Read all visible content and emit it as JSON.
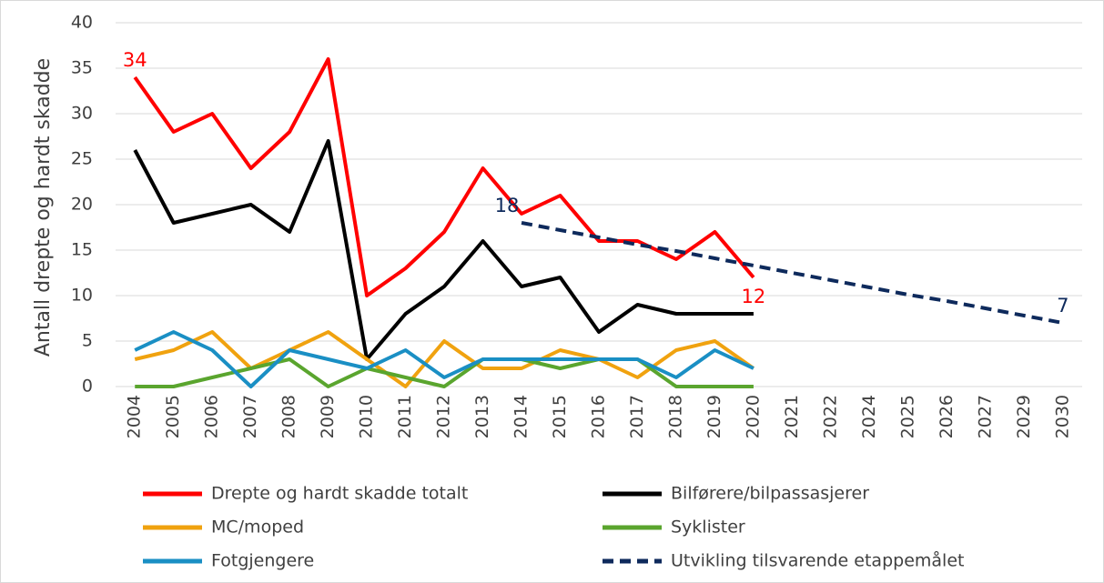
{
  "chart_data": {
    "type": "line",
    "y_label": "Antall drepte og hardt skadde",
    "categories": [
      "2004",
      "2005",
      "2006",
      "2007",
      "2008",
      "2009",
      "2010",
      "2011",
      "2012",
      "2013",
      "2014",
      "2015",
      "2016",
      "2017",
      "2018",
      "2019",
      "2020",
      "2021",
      "2022",
      "2024",
      "2025",
      "2026",
      "2027",
      "2029",
      "2030"
    ],
    "series": [
      {
        "name": "Drepte og hardt skadde totalt",
        "color": "#ff0000",
        "values": [
          34,
          28,
          30,
          24,
          28,
          36,
          10,
          13,
          17,
          24,
          19,
          21,
          16,
          16,
          14,
          17,
          12,
          null,
          null,
          null,
          null,
          null,
          null,
          null,
          null
        ]
      },
      {
        "name": "Bilførere/bilpassasjerer",
        "color": "#000000",
        "values": [
          26,
          18,
          19,
          20,
          17,
          27,
          3,
          8,
          11,
          16,
          11,
          12,
          6,
          9,
          8,
          8,
          8,
          null,
          null,
          null,
          null,
          null,
          null,
          null,
          null
        ]
      },
      {
        "name": "MC/moped",
        "color": "#f0a20f",
        "values": [
          3,
          4,
          6,
          2,
          4,
          6,
          3,
          0,
          5,
          2,
          2,
          4,
          3,
          1,
          4,
          5,
          2,
          null,
          null,
          null,
          null,
          null,
          null,
          null,
          null
        ]
      },
      {
        "name": "Syklister",
        "color": "#5aa52e",
        "values": [
          0,
          0,
          1,
          2,
          3,
          0,
          2,
          1,
          0,
          3,
          3,
          2,
          3,
          3,
          0,
          0,
          0,
          null,
          null,
          null,
          null,
          null,
          null,
          null,
          null
        ]
      },
      {
        "name": "Fotgjengere",
        "color": "#1a8fc4",
        "values": [
          4,
          6,
          4,
          0,
          4,
          3,
          2,
          4,
          1,
          3,
          3,
          3,
          3,
          3,
          1,
          4,
          2,
          null,
          null,
          null,
          null,
          null,
          null,
          null,
          null
        ]
      },
      {
        "name": "Utvikling tilsvarende etappemålet",
        "color": "#0e2a5c",
        "dashed": true,
        "values": [
          null,
          null,
          null,
          null,
          null,
          null,
          null,
          null,
          null,
          null,
          18,
          17.2,
          16.4,
          15.6,
          14.9,
          14.1,
          13.3,
          12.5,
          11.7,
          10.9,
          10.1,
          9.4,
          8.6,
          7.8,
          7
        ]
      }
    ],
    "data_labels": [
      [
        0,
        0
      ],
      [
        0,
        16
      ],
      [
        5,
        10
      ],
      [
        5,
        24
      ]
    ],
    "ylim": [
      0,
      40
    ],
    "yticks": [
      0,
      5,
      10,
      15,
      20,
      25,
      30,
      35,
      40
    ],
    "grid": true
  }
}
